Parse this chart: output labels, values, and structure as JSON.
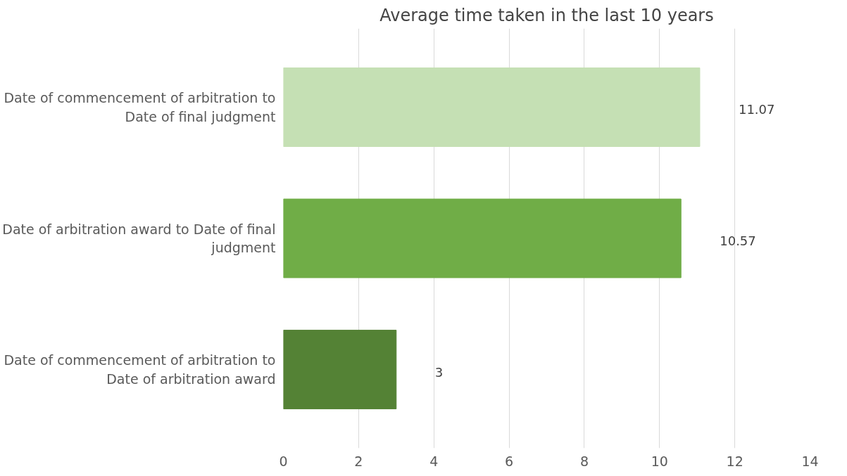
{
  "chart_data": {
    "type": "bar",
    "orientation": "horizontal",
    "title": "Average time taken in the last 10 years",
    "categories": [
      "Date of commencement of arbitration to Date of final judgment",
      "Date of arbitration award to Date of final judgment",
      "Date of commencement of arbitration to Date of arbitration award"
    ],
    "values": [
      11.07,
      10.57,
      3
    ],
    "colors": [
      "#c5e0b4",
      "#70ad47",
      "#548235"
    ],
    "xlim": [
      0,
      14
    ],
    "xticks": [
      0,
      2,
      4,
      6,
      8,
      10,
      12,
      14
    ],
    "grid": "x",
    "data_labels": true
  }
}
